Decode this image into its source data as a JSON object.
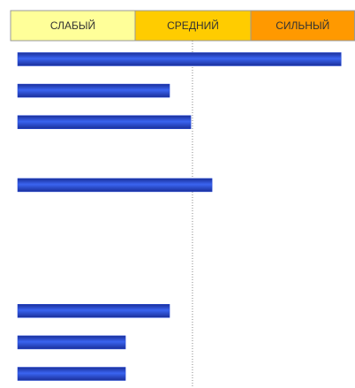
{
  "chart_data": {
    "type": "hbar",
    "bands": [
      {
        "label": "СЛАБЫЙ",
        "color": "#ffff99"
      },
      {
        "label": "СРЕДНИЙ",
        "color": "#ffcc00"
      },
      {
        "label": "СИЛЬНЫЙ",
        "color": "#ff9900"
      }
    ],
    "values": [
      99,
      46.5,
      53,
      null,
      59.5,
      null,
      null,
      null,
      46.5,
      33,
      33
    ],
    "color": "#2348d8",
    "xlim": [
      0,
      100
    ],
    "reference_line": 53.5
  }
}
